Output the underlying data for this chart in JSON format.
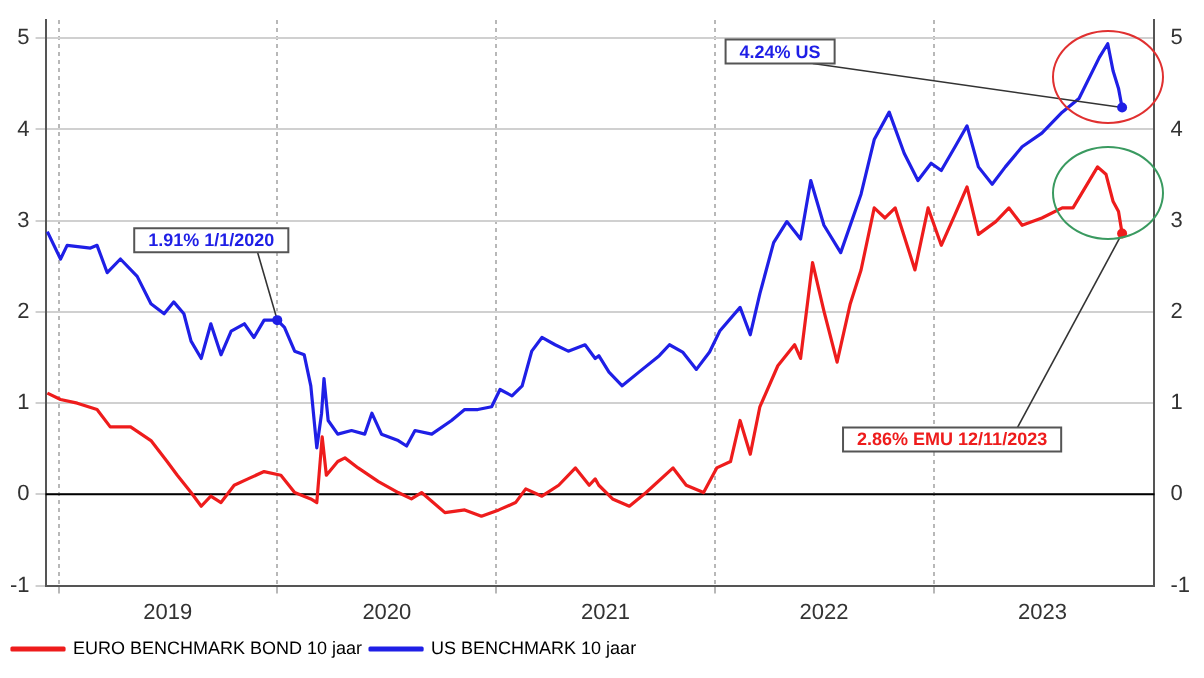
{
  "chart_data": {
    "type": "line",
    "series": [
      {
        "name": "EURO BENCHMARK BOND 10 jaar",
        "color": "#ee1c1c",
        "x": [
          "2018-12-13",
          "2019-01-04",
          "2019-02-01",
          "2019-03-06",
          "2019-03-28",
          "2019-05-01",
          "2019-06-04",
          "2019-07-01",
          "2019-07-18",
          "2019-08-10",
          "2019-08-27",
          "2019-09-12",
          "2019-09-29",
          "2019-10-21",
          "2019-11-13",
          "2019-12-10",
          "2020-01-07",
          "2020-01-30",
          "2020-02-26",
          "2020-03-07",
          "2020-03-16",
          "2020-03-23",
          "2020-04-11",
          "2020-04-23",
          "2020-05-15",
          "2020-06-18",
          "2020-07-21",
          "2020-08-12",
          "2020-08-29",
          "2020-10-07",
          "2020-11-09",
          "2020-12-07",
          "2021-01-05",
          "2021-02-02",
          "2021-02-19",
          "2021-03-18",
          "2021-04-15",
          "2021-05-13",
          "2021-06-05",
          "2021-06-15",
          "2021-06-21",
          "2021-07-14",
          "2021-08-11",
          "2021-09-08",
          "2021-10-23",
          "2021-11-14",
          "2021-12-13",
          "2022-01-04",
          "2022-01-27",
          "2022-02-12",
          "2022-03-01",
          "2022-03-17",
          "2022-04-16",
          "2022-05-14",
          "2022-05-24",
          "2022-06-13",
          "2022-07-02",
          "2022-07-24",
          "2022-08-15",
          "2022-09-02",
          "2022-09-24",
          "2022-10-12",
          "2022-10-29",
          "2022-12-01",
          "2022-12-23",
          "2023-01-14",
          "2023-02-06",
          "2023-02-26",
          "2023-03-17",
          "2023-04-15",
          "2023-05-07",
          "2023-05-29",
          "2023-07-01",
          "2023-08-04",
          "2023-08-22",
          "2023-10-02",
          "2023-10-16",
          "2023-10-28",
          "2023-11-06",
          "2023-11-12"
        ],
        "values": [
          1.11,
          1.04,
          1.0,
          0.93,
          0.74,
          0.74,
          0.59,
          0.36,
          0.21,
          0.02,
          -0.13,
          -0.02,
          -0.09,
          0.1,
          0.17,
          0.25,
          0.21,
          0.02,
          -0.05,
          -0.09,
          0.63,
          0.21,
          0.36,
          0.4,
          0.29,
          0.14,
          0.02,
          -0.05,
          0.02,
          -0.2,
          -0.17,
          -0.24,
          -0.17,
          -0.09,
          0.06,
          -0.02,
          0.1,
          0.29,
          0.1,
          0.17,
          0.1,
          -0.05,
          -0.13,
          0.02,
          0.29,
          0.1,
          0.02,
          0.29,
          0.36,
          0.81,
          0.44,
          0.96,
          1.41,
          1.64,
          1.49,
          2.54,
          2.01,
          1.45,
          2.09,
          2.46,
          3.14,
          3.03,
          3.14,
          2.46,
          3.14,
          2.73,
          3.07,
          3.37,
          2.85,
          2.99,
          3.14,
          2.95,
          3.03,
          3.14,
          3.14,
          3.59,
          3.51,
          3.21,
          3.1,
          2.86
        ]
      },
      {
        "name": "US BENCHMARK 10 jaar",
        "color": "#1f1fe6",
        "x": [
          "2018-12-13",
          "2019-01-04",
          "2019-01-15",
          "2019-02-23",
          "2019-03-06",
          "2019-03-23",
          "2019-04-14",
          "2019-05-12",
          "2019-06-04",
          "2019-06-26",
          "2019-07-12",
          "2019-07-29",
          "2019-08-10",
          "2019-08-27",
          "2019-09-12",
          "2019-09-29",
          "2019-10-16",
          "2019-11-07",
          "2019-11-23",
          "2019-12-10",
          "2020-01-01",
          "2020-01-13",
          "2020-01-30",
          "2020-02-15",
          "2020-02-26",
          "2020-03-07",
          "2020-03-15",
          "2020-03-19",
          "2020-03-26",
          "2020-04-11",
          "2020-05-04",
          "2020-05-26",
          "2020-06-07",
          "2020-06-23",
          "2020-07-21",
          "2020-08-04",
          "2020-08-18",
          "2020-09-15",
          "2020-10-18",
          "2020-11-09",
          "2020-12-01",
          "2020-12-24",
          "2021-01-07",
          "2021-01-27",
          "2021-02-13",
          "2021-03-01",
          "2021-03-18",
          "2021-04-09",
          "2021-05-01",
          "2021-05-29",
          "2021-06-15",
          "2021-06-21",
          "2021-07-08",
          "2021-07-30",
          "2021-08-27",
          "2021-09-30",
          "2021-10-17",
          "2021-11-08",
          "2021-12-01",
          "2021-12-23",
          "2022-01-09",
          "2022-02-12",
          "2022-03-01",
          "2022-03-17",
          "2022-04-09",
          "2022-05-01",
          "2022-05-24",
          "2022-06-10",
          "2022-07-02",
          "2022-07-30",
          "2022-09-02",
          "2022-09-24",
          "2022-10-19",
          "2022-11-13",
          "2022-12-06",
          "2022-12-28",
          "2023-01-14",
          "2023-02-06",
          "2023-02-26",
          "2023-03-17",
          "2023-04-09",
          "2023-05-01",
          "2023-05-29",
          "2023-07-01",
          "2023-08-04",
          "2023-09-01",
          "2023-10-05",
          "2023-10-19",
          "2023-10-28",
          "2023-11-06",
          "2023-11-12"
        ],
        "values": [
          2.88,
          2.58,
          2.73,
          2.7,
          2.73,
          2.43,
          2.58,
          2.39,
          2.09,
          1.98,
          2.11,
          1.98,
          1.68,
          1.49,
          1.87,
          1.53,
          1.79,
          1.87,
          1.72,
          1.91,
          1.91,
          1.83,
          1.57,
          1.53,
          1.19,
          0.51,
          0.89,
          1.27,
          0.81,
          0.66,
          0.7,
          0.66,
          0.89,
          0.66,
          0.59,
          0.53,
          0.7,
          0.66,
          0.81,
          0.93,
          0.93,
          0.96,
          1.15,
          1.08,
          1.19,
          1.57,
          1.72,
          1.64,
          1.57,
          1.64,
          1.49,
          1.52,
          1.34,
          1.19,
          1.34,
          1.52,
          1.64,
          1.56,
          1.37,
          1.56,
          1.79,
          2.05,
          1.75,
          2.2,
          2.76,
          2.99,
          2.8,
          3.44,
          2.95,
          2.65,
          3.29,
          3.89,
          4.19,
          3.74,
          3.44,
          3.63,
          3.55,
          3.81,
          4.04,
          3.59,
          3.4,
          3.59,
          3.81,
          3.96,
          4.19,
          4.34,
          4.79,
          4.94,
          4.64,
          4.45,
          4.24
        ]
      }
    ],
    "xlim": [
      "2018-12-10",
      "2024-01-05"
    ],
    "xticks": [
      {
        "value": "2019-01-01",
        "label": null
      },
      {
        "value": "2019-07-02",
        "label": "2019"
      },
      {
        "value": "2020-01-01",
        "label": null
      },
      {
        "value": "2020-07-02",
        "label": "2020"
      },
      {
        "value": "2021-01-01",
        "label": null
      },
      {
        "value": "2021-07-02",
        "label": "2021"
      },
      {
        "value": "2022-01-01",
        "label": null
      },
      {
        "value": "2022-07-02",
        "label": "2022"
      },
      {
        "value": "2023-01-01",
        "label": null
      },
      {
        "value": "2023-07-02",
        "label": "2023"
      }
    ],
    "ylim": [
      -1,
      5.2
    ],
    "yticks": [
      -1,
      0,
      1,
      2,
      3,
      4,
      5
    ],
    "y2lim": [
      -1,
      5.2
    ],
    "y2ticks": [
      -1,
      0,
      1,
      2,
      3,
      4,
      5
    ],
    "ref_lines": [
      {
        "axis": "y",
        "value": 0,
        "color": "#000000"
      }
    ],
    "annotations": [
      {
        "text": "1.91% 1/1/2020",
        "x": "2020-01-01",
        "y": 1.91
      },
      {
        "text": "4.24% US",
        "x": "2023-11-12",
        "y": 4.24
      },
      {
        "text": "2.86% EMU 12/11/2023",
        "x": "2023-11-12",
        "y": 2.86
      }
    ],
    "grid": true,
    "legend": "bottom"
  }
}
